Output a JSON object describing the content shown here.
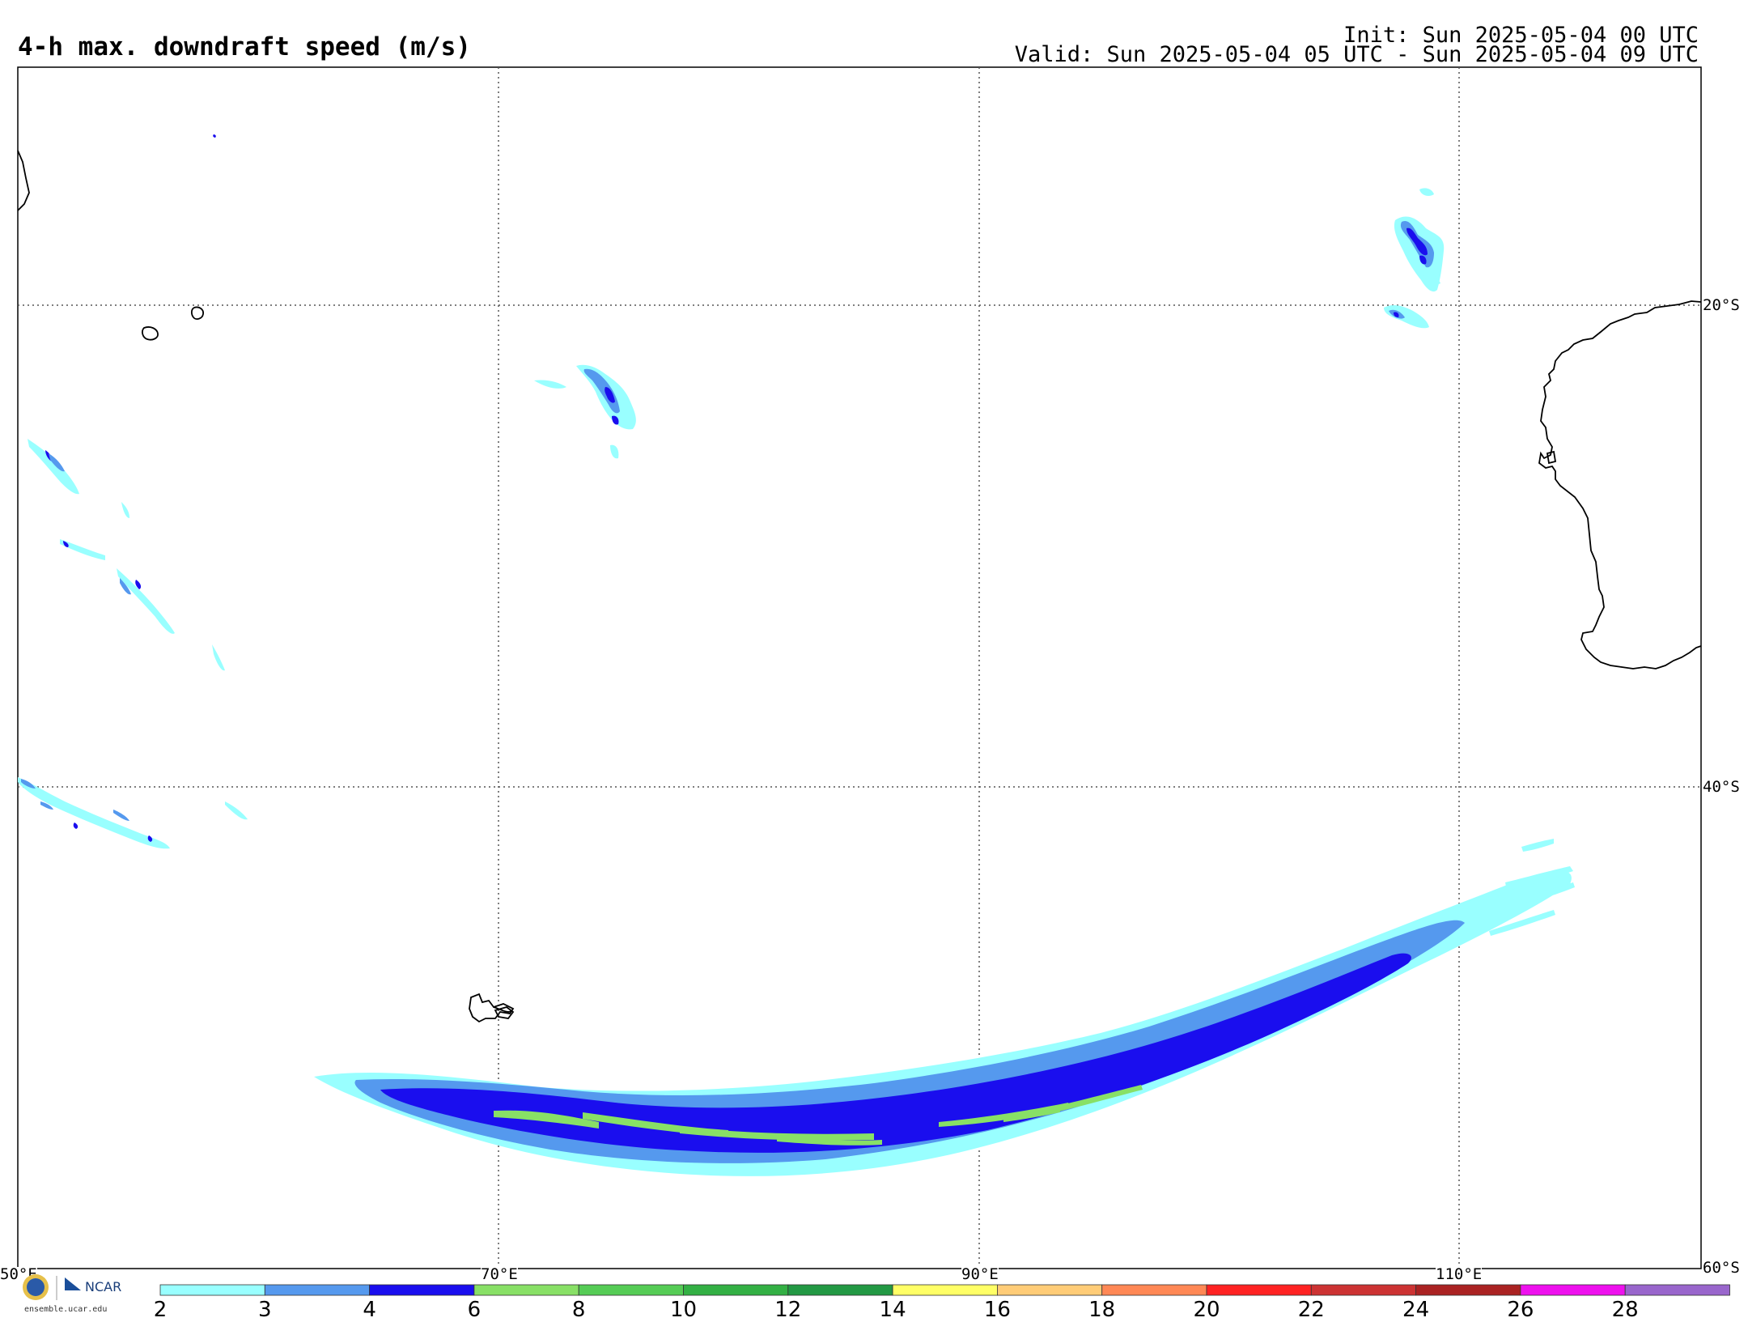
{
  "header": {
    "title": "4-h max. downdraft speed (m/s)",
    "init": "Init: Sun 2025-05-04 00 UTC",
    "valid": "Valid: Sun 2025-05-04 05 UTC - Sun 2025-05-04 09 UTC"
  },
  "axes": {
    "lon_labels": [
      "50°E",
      "70°E",
      "90°E",
      "110°E"
    ],
    "lat_labels": [
      "20°S",
      "40°S",
      "60°S"
    ]
  },
  "colorbar": {
    "labels": [
      "2",
      "3",
      "4",
      "6",
      "8",
      "10",
      "12",
      "14",
      "16",
      "18",
      "20",
      "22",
      "24",
      "26",
      "28"
    ],
    "colors": [
      "#99ffff",
      "#5599ee",
      "#1a0eee",
      "#88e066",
      "#55cc55",
      "#33b044",
      "#229944",
      "#ffff66",
      "#ffcc77",
      "#ff8855",
      "#ff2222",
      "#cc3333",
      "#aa2222",
      "#ee11ee",
      "#9966cc"
    ]
  },
  "footer": {
    "logo_text": "NCAR",
    "site": "ensemble.ucar.edu"
  }
}
